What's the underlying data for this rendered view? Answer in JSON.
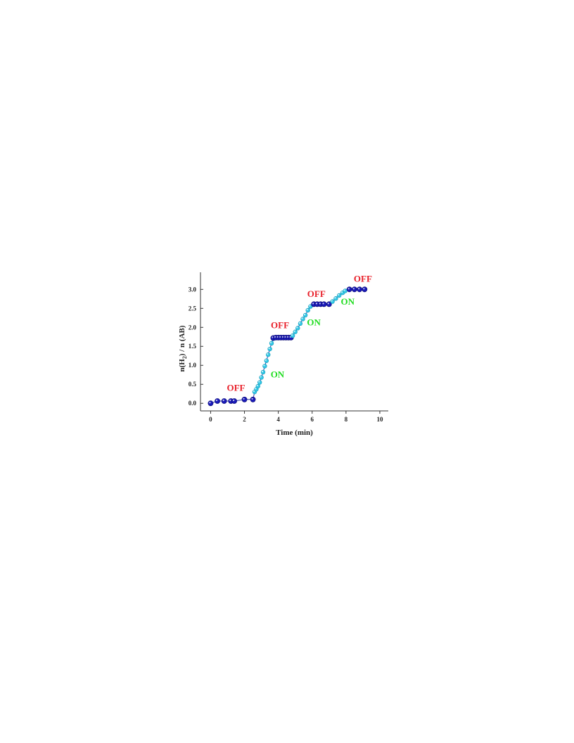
{
  "chart_data": {
    "type": "scatter",
    "xlabel": "Time (min)",
    "ylabel_main": "n(H",
    "ylabel_sub": "2",
    "ylabel_rest": ") / n (AB)",
    "xlim": [
      -0.6,
      10.5
    ],
    "ylim": [
      -0.2,
      3.45
    ],
    "xticks": [
      0,
      2,
      4,
      6,
      8,
      10
    ],
    "yticks": [
      0.0,
      0.5,
      1.0,
      1.5,
      2.0,
      2.5,
      3.0
    ],
    "xtick_labels": [
      "0",
      "2",
      "4",
      "6",
      "8",
      "10"
    ],
    "ytick_labels": [
      "0.0",
      "0.5",
      "1.0",
      "1.5",
      "2.0",
      "2.5",
      "3.0"
    ],
    "off_color": "#1a1ab8",
    "on_color": "#33c8e6",
    "segments": [
      {
        "state": "OFF",
        "points": [
          [
            0.0,
            0.0
          ],
          [
            0.4,
            0.06
          ],
          [
            0.8,
            0.06
          ],
          [
            1.2,
            0.06
          ],
          [
            1.4,
            0.06
          ],
          [
            2.0,
            0.1
          ],
          [
            2.5,
            0.1
          ]
        ]
      },
      {
        "state": "ON",
        "points": [
          [
            2.6,
            0.3
          ],
          [
            2.7,
            0.37
          ],
          [
            2.8,
            0.45
          ],
          [
            2.9,
            0.55
          ],
          [
            3.0,
            0.68
          ],
          [
            3.1,
            0.82
          ],
          [
            3.2,
            0.98
          ],
          [
            3.3,
            1.12
          ],
          [
            3.4,
            1.28
          ],
          [
            3.5,
            1.43
          ],
          [
            3.6,
            1.58
          ],
          [
            3.7,
            1.7
          ]
        ]
      },
      {
        "state": "OFF",
        "points": [
          [
            3.7,
            1.72
          ],
          [
            3.85,
            1.73
          ],
          [
            4.0,
            1.73
          ],
          [
            4.15,
            1.73
          ],
          [
            4.3,
            1.73
          ],
          [
            4.45,
            1.73
          ],
          [
            4.6,
            1.73
          ],
          [
            4.75,
            1.73
          ]
        ]
      },
      {
        "state": "ON",
        "points": [
          [
            4.85,
            1.78
          ],
          [
            5.0,
            1.88
          ],
          [
            5.15,
            1.98
          ],
          [
            5.3,
            2.1
          ],
          [
            5.45,
            2.22
          ],
          [
            5.6,
            2.32
          ],
          [
            5.75,
            2.45
          ],
          [
            5.9,
            2.55
          ]
        ]
      },
      {
        "state": "OFF",
        "points": [
          [
            6.1,
            2.61
          ],
          [
            6.3,
            2.61
          ],
          [
            6.5,
            2.61
          ],
          [
            6.7,
            2.61
          ],
          [
            7.0,
            2.61
          ]
        ]
      },
      {
        "state": "ON",
        "points": [
          [
            7.2,
            2.68
          ],
          [
            7.4,
            2.76
          ],
          [
            7.6,
            2.84
          ],
          [
            7.8,
            2.91
          ],
          [
            7.95,
            2.96
          ]
        ]
      },
      {
        "state": "OFF",
        "points": [
          [
            8.2,
            3.0
          ],
          [
            8.5,
            3.0
          ],
          [
            8.8,
            3.0
          ],
          [
            9.1,
            3.0
          ]
        ]
      }
    ],
    "annotations": [
      {
        "text": "OFF",
        "x": 1.5,
        "y": 0.33,
        "color": "#e8202a"
      },
      {
        "text": "ON",
        "x": 3.95,
        "y": 0.68,
        "color": "#22dd22"
      },
      {
        "text": "OFF",
        "x": 4.1,
        "y": 1.98,
        "color": "#e8202a"
      },
      {
        "text": "ON",
        "x": 6.1,
        "y": 2.05,
        "color": "#22dd22"
      },
      {
        "text": "OFF",
        "x": 6.25,
        "y": 2.8,
        "color": "#e8202a"
      },
      {
        "text": "ON",
        "x": 8.1,
        "y": 2.6,
        "color": "#22dd22"
      },
      {
        "text": "OFF",
        "x": 9.0,
        "y": 3.2,
        "color": "#e8202a"
      }
    ]
  }
}
